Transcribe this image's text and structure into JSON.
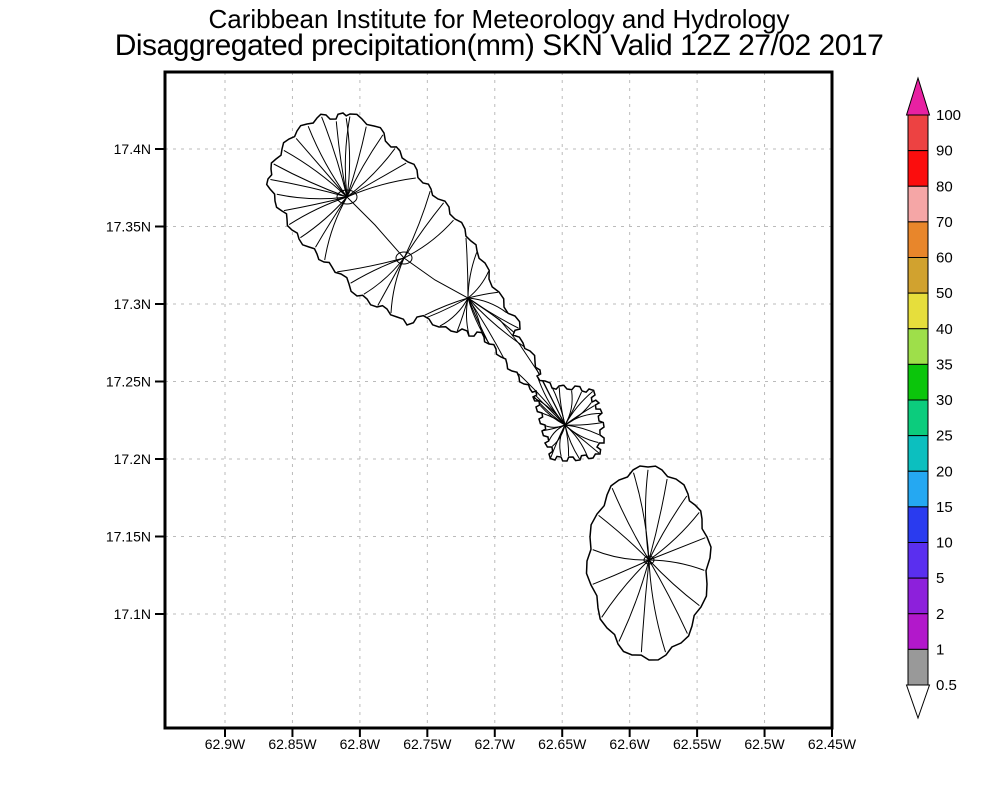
{
  "header": {
    "title_line1": "Caribbean Institute for Meteorology and Hydrology",
    "title_line2": "Disaggregated precipitation(mm) SKN Valid 12Z 27/02 2017"
  },
  "map": {
    "lat_ticks": [
      "17.4N",
      "17.35N",
      "17.3N",
      "17.25N",
      "17.2N",
      "17.15N",
      "17.1N"
    ],
    "lon_ticks": [
      "62.9W",
      "62.85W",
      "62.8W",
      "62.75W",
      "62.7W",
      "62.65W",
      "62.6W",
      "62.55W",
      "62.5W",
      "62.45W"
    ]
  },
  "colorbar": {
    "labels": [
      "100",
      "90",
      "80",
      "70",
      "60",
      "50",
      "40",
      "35",
      "30",
      "25",
      "20",
      "15",
      "10",
      "5",
      "2",
      "1",
      "0.5"
    ],
    "segment_colors": [
      "#ED4242",
      "#FB0D0D",
      "#F5A6A6",
      "#E8862B",
      "#D1A22F",
      "#E6DE3C",
      "#9EDF4A",
      "#0BC50B",
      "#0CCC7D",
      "#0CBFBF",
      "#25A8F2",
      "#2A3BEF",
      "#5A2FEF",
      "#8D20DB",
      "#B218CB",
      "#999999"
    ],
    "over_arrow_color": "#E821A2",
    "under_arrow_color": "#FFFFFF"
  },
  "chart_data": {
    "type": "map",
    "variable": "Disaggregated precipitation(mm)",
    "domain_label": "SKN",
    "valid_time": "12Z 27/02 2017",
    "lat_tick_values": [
      17.4,
      17.35,
      17.3,
      17.25,
      17.2,
      17.15,
      17.1
    ],
    "lon_tick_values": [
      -62.9,
      -62.85,
      -62.8,
      -62.75,
      -62.7,
      -62.65,
      -62.6,
      -62.55,
      -62.5,
      -62.45
    ],
    "colorbar_thresholds": [
      0.5,
      1,
      2,
      5,
      10,
      15,
      20,
      25,
      30,
      35,
      40,
      50,
      60,
      70,
      80,
      90,
      100
    ],
    "grid": true,
    "legend_position": "right"
  }
}
